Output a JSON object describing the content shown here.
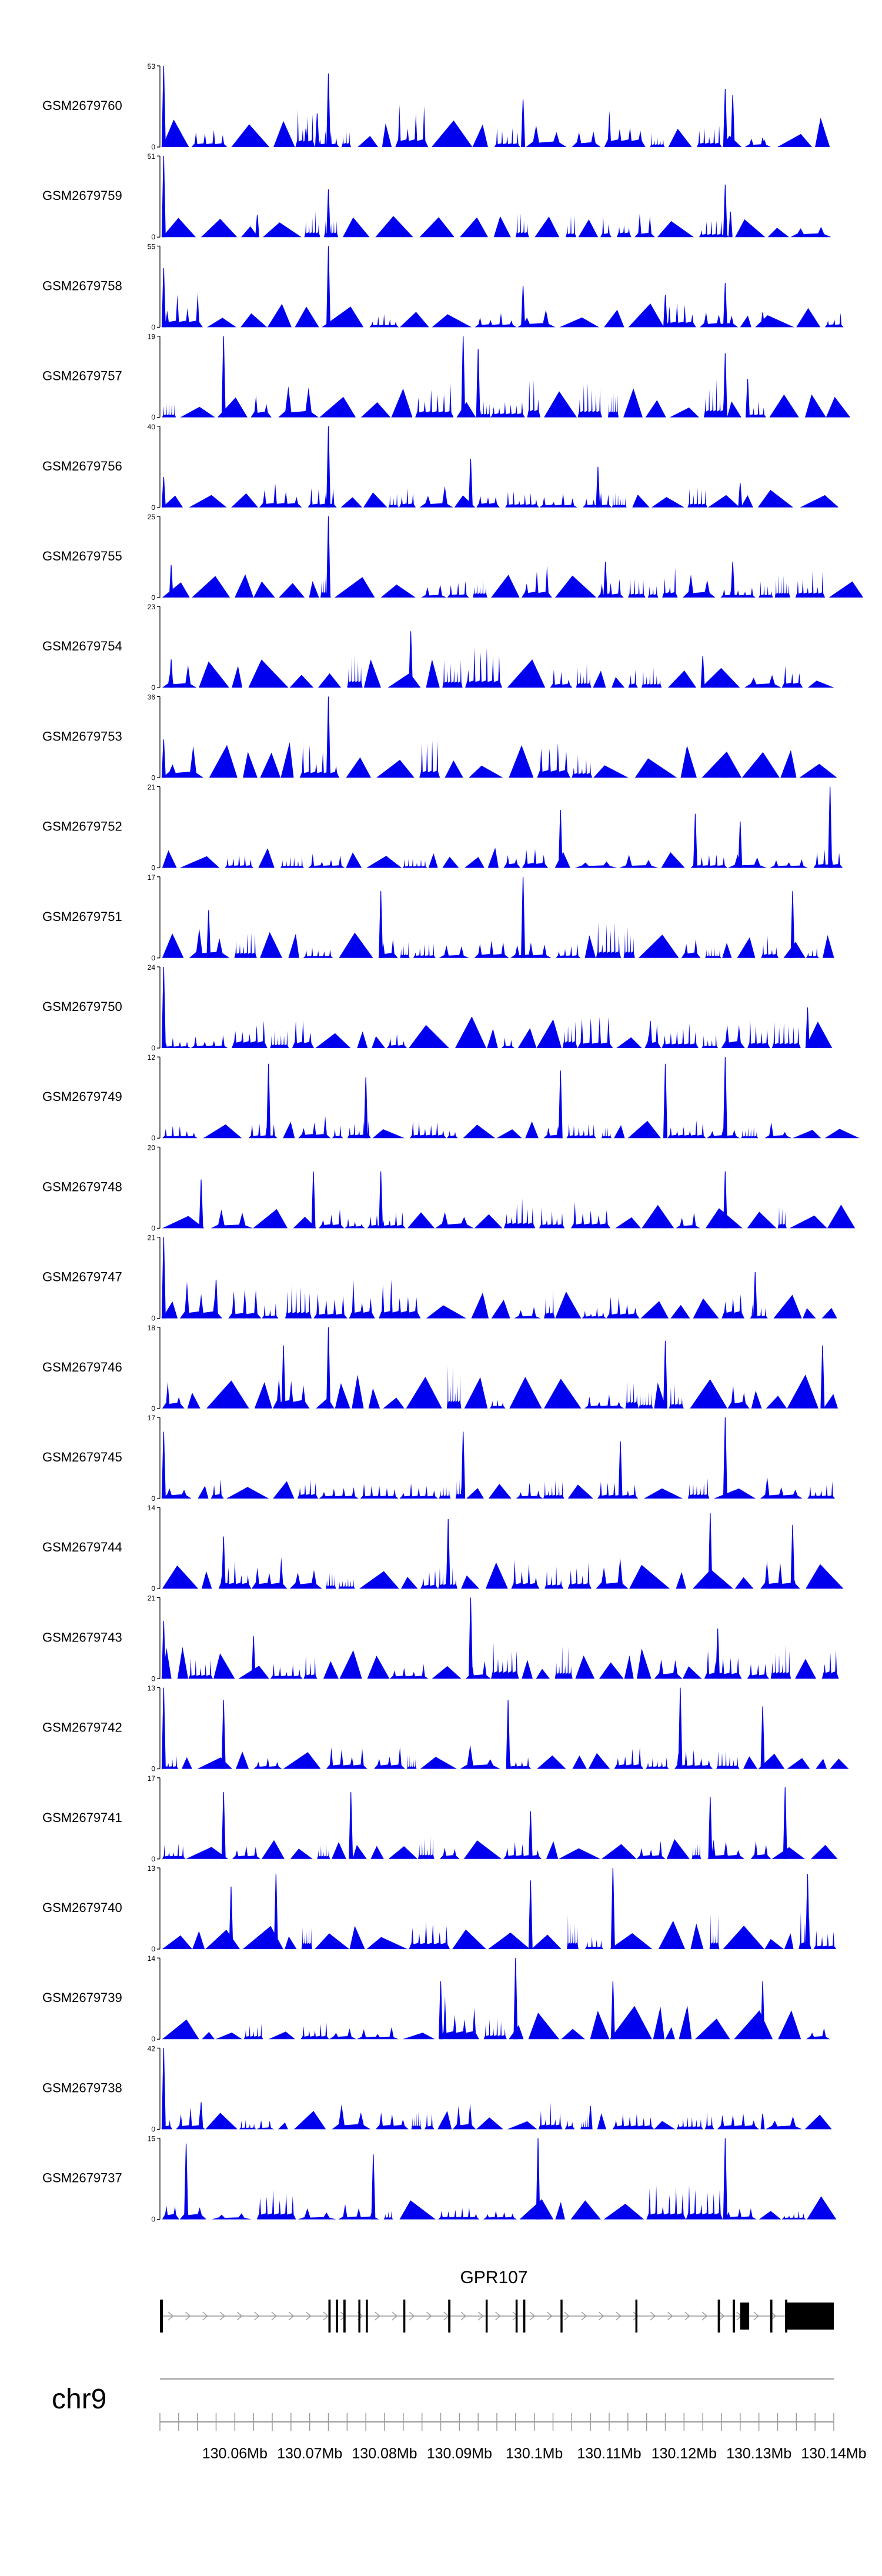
{
  "chart_data": {
    "type": "area",
    "colors": {
      "fill": "#0000ee",
      "axis": "#000000",
      "exon": "#000000",
      "intron_arrow": "#999999",
      "rule": "#999999"
    },
    "x_range": [
      130.05,
      130.14
    ],
    "tracks": [
      {
        "name": "GSM2679760",
        "ymax": 53,
        "ymin": 0,
        "peaks": [
          [
            130.0505,
            53
          ],
          [
            130.071,
            22
          ],
          [
            130.0725,
            48
          ],
          [
            130.0695,
            12
          ],
          [
            130.0985,
            31
          ],
          [
            130.1255,
            38
          ],
          [
            130.1265,
            34
          ],
          [
            130.1305,
            6
          ]
        ]
      },
      {
        "name": "GSM2679759",
        "ymax": 51,
        "ymin": 0,
        "peaks": [
          [
            130.0505,
            51
          ],
          [
            130.063,
            14
          ],
          [
            130.0725,
            30
          ],
          [
            130.1255,
            33
          ],
          [
            130.1262,
            16
          ]
        ]
      },
      {
        "name": "GSM2679758",
        "ymax": 55,
        "ymin": 0,
        "peaks": [
          [
            130.0505,
            40
          ],
          [
            130.0725,
            55
          ],
          [
            130.0985,
            28
          ],
          [
            130.1175,
            22
          ],
          [
            130.1255,
            30
          ],
          [
            130.1305,
            10
          ]
        ]
      },
      {
        "name": "GSM2679757",
        "ymax": 19,
        "ymin": 0,
        "peaks": [
          [
            130.0585,
            19
          ],
          [
            130.0905,
            19
          ],
          [
            130.0925,
            16
          ],
          [
            130.1255,
            15
          ],
          [
            130.1285,
            9
          ]
        ]
      },
      {
        "name": "GSM2679756",
        "ymax": 40,
        "ymin": 0,
        "peaks": [
          [
            130.0505,
            15
          ],
          [
            130.0725,
            40
          ],
          [
            130.0915,
            24
          ],
          [
            130.1085,
            20
          ],
          [
            130.1275,
            12
          ]
        ]
      },
      {
        "name": "GSM2679755",
        "ymax": 25,
        "ymin": 0,
        "peaks": [
          [
            130.0725,
            25
          ],
          [
            130.0515,
            10
          ],
          [
            130.1095,
            11
          ],
          [
            130.1265,
            11
          ]
        ]
      },
      {
        "name": "GSM2679754",
        "ymax": 23,
        "ymin": 0,
        "peaks": [
          [
            130.0835,
            16
          ],
          [
            130.0515,
            8
          ],
          [
            130.1225,
            9
          ]
        ]
      },
      {
        "name": "GSM2679753",
        "ymax": 36,
        "ymin": 0,
        "peaks": [
          [
            130.0725,
            36
          ],
          [
            130.0505,
            17
          ],
          [
            130.0985,
            9
          ],
          [
            130.1255,
            9
          ]
        ]
      },
      {
        "name": "GSM2679752",
        "ymax": 21,
        "ymin": 0,
        "peaks": [
          [
            130.1395,
            21
          ],
          [
            130.1035,
            15
          ],
          [
            130.1215,
            14
          ],
          [
            130.1275,
            12
          ]
        ]
      },
      {
        "name": "GSM2679751",
        "ymax": 17,
        "ymin": 0,
        "peaks": [
          [
            130.0985,
            17
          ],
          [
            130.1345,
            14
          ],
          [
            130.0795,
            14
          ],
          [
            130.0565,
            10
          ]
        ]
      },
      {
        "name": "GSM2679750",
        "ymax": 24,
        "ymin": 0,
        "peaks": [
          [
            130.0505,
            24
          ],
          [
            130.1365,
            12
          ],
          [
            130.1155,
            8
          ]
        ]
      },
      {
        "name": "GSM2679749",
        "ymax": 12,
        "ymin": 0,
        "peaks": [
          [
            130.1255,
            12
          ],
          [
            130.0645,
            11
          ],
          [
            130.1035,
            10
          ],
          [
            130.1175,
            11
          ],
          [
            130.0775,
            9
          ]
        ]
      },
      {
        "name": "GSM2679748",
        "ymax": 20,
        "ymin": 0,
        "peaks": [
          [
            130.0555,
            12
          ],
          [
            130.0705,
            14
          ],
          [
            130.1255,
            14
          ],
          [
            130.0795,
            14
          ]
        ]
      },
      {
        "name": "GSM2679747",
        "ymax": 21,
        "ymin": 0,
        "peaks": [
          [
            130.0505,
            21
          ],
          [
            130.0575,
            10
          ],
          [
            130.1295,
            12
          ]
        ]
      },
      {
        "name": "GSM2679746",
        "ymax": 18,
        "ymin": 0,
        "peaks": [
          [
            130.0725,
            18
          ],
          [
            130.1175,
            15
          ],
          [
            130.0665,
            14
          ],
          [
            130.1385,
            14
          ]
        ]
      },
      {
        "name": "GSM2679745",
        "ymax": 17,
        "ymin": 0,
        "peaks": [
          [
            130.1255,
            17
          ],
          [
            130.0905,
            14
          ],
          [
            130.0505,
            14
          ],
          [
            130.1115,
            12
          ]
        ]
      },
      {
        "name": "GSM2679744",
        "ymax": 14,
        "ymin": 0,
        "peaks": [
          [
            130.1235,
            13
          ],
          [
            130.0885,
            12
          ],
          [
            130.1345,
            11
          ],
          [
            130.0585,
            9
          ]
        ]
      },
      {
        "name": "GSM2679743",
        "ymax": 21,
        "ymin": 0,
        "peaks": [
          [
            130.0915,
            21
          ],
          [
            130.0505,
            15
          ],
          [
            130.1245,
            13
          ],
          [
            130.0625,
            11
          ]
        ]
      },
      {
        "name": "GSM2679742",
        "ymax": 13,
        "ymin": 0,
        "peaks": [
          [
            130.0505,
            13
          ],
          [
            130.1195,
            13
          ],
          [
            130.0585,
            11
          ],
          [
            130.0965,
            11
          ],
          [
            130.1305,
            10
          ]
        ]
      },
      {
        "name": "GSM2679741",
        "ymax": 17,
        "ymin": 0,
        "peaks": [
          [
            130.1335,
            15
          ],
          [
            130.0585,
            14
          ],
          [
            130.0755,
            14
          ],
          [
            130.0995,
            10
          ],
          [
            130.1235,
            13
          ]
        ]
      },
      {
        "name": "GSM2679740",
        "ymax": 13,
        "ymin": 0,
        "peaks": [
          [
            130.1105,
            13
          ],
          [
            130.0655,
            12
          ],
          [
            130.0595,
            10
          ],
          [
            130.1365,
            12
          ],
          [
            130.0995,
            11
          ]
        ]
      },
      {
        "name": "GSM2679739",
        "ymax": 14,
        "ymin": 0,
        "peaks": [
          [
            130.0975,
            14
          ],
          [
            130.0875,
            10
          ],
          [
            130.1105,
            10
          ],
          [
            130.1305,
            10
          ]
        ]
      },
      {
        "name": "GSM2679738",
        "ymax": 42,
        "ymin": 0,
        "peaks": [
          [
            130.0505,
            42
          ],
          [
            130.0555,
            14
          ],
          [
            130.1075,
            12
          ],
          [
            130.1305,
            8
          ]
        ]
      },
      {
        "name": "GSM2679737",
        "ymax": 15,
        "ymin": 0,
        "peaks": [
          [
            130.1005,
            15
          ],
          [
            130.1255,
            15
          ],
          [
            130.0535,
            14
          ],
          [
            130.0785,
            12
          ]
        ]
      }
    ],
    "gene": {
      "name": "GPR107",
      "start": 130.05,
      "end": 130.14,
      "exons": [
        [
          130.05,
          130.0504
        ],
        [
          130.0725,
          130.0728
        ],
        [
          130.0735,
          130.0738
        ],
        [
          130.0745,
          130.0748
        ],
        [
          130.0765,
          130.0767
        ],
        [
          130.0775,
          130.0777
        ],
        [
          130.0825,
          130.0827
        ],
        [
          130.0885,
          130.0888
        ],
        [
          130.0935,
          130.0937
        ],
        [
          130.0975,
          130.0977
        ],
        [
          130.0985,
          130.0988
        ],
        [
          130.1035,
          130.1037
        ],
        [
          130.1135,
          130.1137
        ],
        [
          130.1245,
          130.1248
        ],
        [
          130.1265,
          130.1268
        ],
        [
          130.1275,
          130.1287
        ],
        [
          130.1315,
          130.1318
        ],
        [
          130.1335,
          130.1338
        ],
        [
          130.1335,
          130.14
        ]
      ]
    },
    "chromosome": "chr9",
    "axis": {
      "ticks": [
        130.05,
        130.055,
        130.06,
        130.065,
        130.07,
        130.075,
        130.08,
        130.085,
        130.09,
        130.095,
        130.1,
        130.105,
        130.11,
        130.115,
        130.12,
        130.125,
        130.13,
        130.135,
        130.14
      ],
      "tick_labels": [
        "130.06Mb",
        "130.07Mb",
        "130.08Mb",
        "130.09Mb",
        "130.1Mb",
        "130.11Mb",
        "130.12Mb",
        "130.13Mb",
        "130.14Mb"
      ],
      "tick_label_values": [
        130.06,
        130.07,
        130.08,
        130.09,
        130.1,
        130.11,
        130.12,
        130.13,
        130.14
      ]
    }
  }
}
